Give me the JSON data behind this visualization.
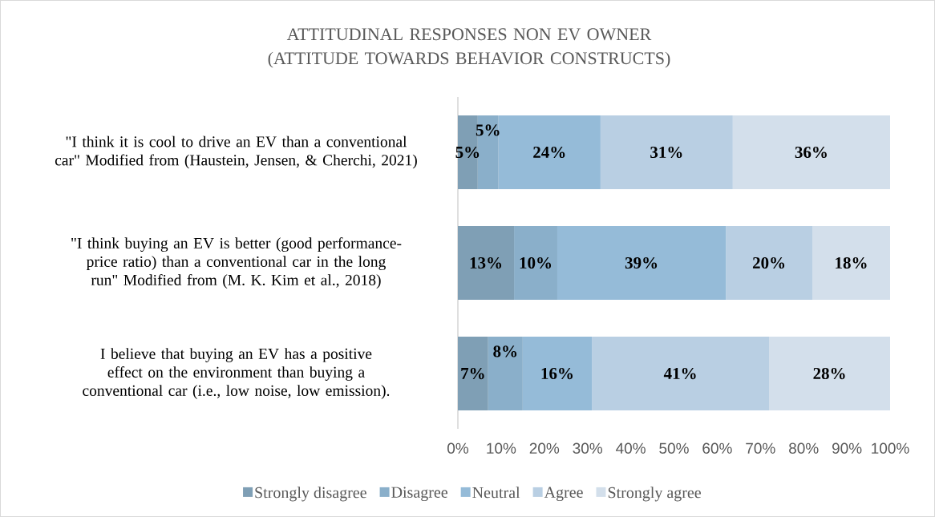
{
  "chart_data": {
    "type": "bar",
    "orientation": "horizontal",
    "stacked": true,
    "title": "ATTITUDINAL RESPONSES NON EV OWNER  (ATTITUDE TOWARDS BEHAVIOR CONSTRUCTS)",
    "categories": [
      "\"I think it is cool to drive an EV than a conventional car\" Modified from (Haustein, Jensen, & Cherchi, 2021)",
      "\"I think buying an EV is better (good performance-price ratio) than a conventional car in the long run\" Modified from (M. K. Kim et al., 2018)",
      "I believe that buying an EV has a positive effect on the environment than buying a conventional car (i.e., low noise, low emission)."
    ],
    "series": [
      {
        "name": "Strongly disagree",
        "color": "#7f9fb5",
        "values": [
          4.6,
          13,
          7
        ],
        "value_labels": [
          "5%",
          "13%",
          "7%"
        ]
      },
      {
        "name": "Disagree",
        "color": "#8aafca",
        "values": [
          4.8,
          10,
          8
        ],
        "value_labels": [
          "5%",
          "10%",
          "8%"
        ]
      },
      {
        "name": "Neutral",
        "color": "#95bbd8",
        "values": [
          23.6,
          39,
          16
        ],
        "value_labels": [
          "24%",
          "39%",
          "16%"
        ]
      },
      {
        "name": "Agree",
        "color": "#b9cfe3",
        "values": [
          30.6,
          20,
          41
        ],
        "value_labels": [
          "31%",
          "20%",
          "41%"
        ]
      },
      {
        "name": "Strongly agree",
        "color": "#d3dfeb",
        "values": [
          36.4,
          18,
          28
        ],
        "value_labels": [
          "36%",
          "18%",
          "28%"
        ]
      }
    ],
    "xlim": [
      0,
      100
    ],
    "xticks": [
      {
        "value": 0,
        "label": "0%"
      },
      {
        "value": 10,
        "label": "10%"
      },
      {
        "value": 20,
        "label": "20%"
      },
      {
        "value": 30,
        "label": "30%"
      },
      {
        "value": 40,
        "label": "40%"
      },
      {
        "value": 50,
        "label": "50%"
      },
      {
        "value": 60,
        "label": "60%"
      },
      {
        "value": 70,
        "label": "70%"
      },
      {
        "value": 80,
        "label": "80%"
      },
      {
        "value": 90,
        "label": "90%"
      },
      {
        "value": 100,
        "label": "100%"
      }
    ],
    "legend": "bottom"
  }
}
